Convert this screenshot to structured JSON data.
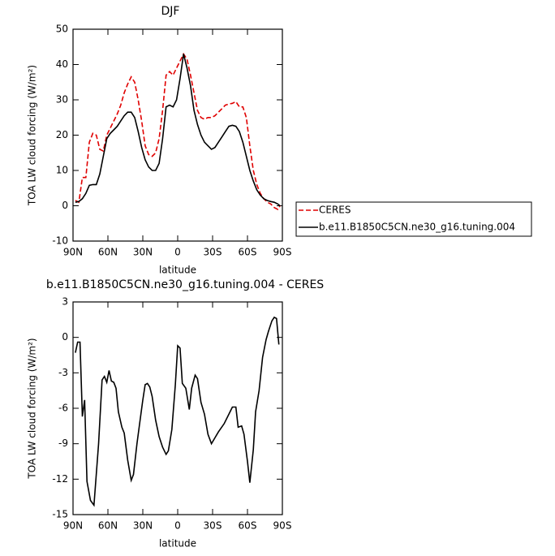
{
  "chart_data": [
    {
      "type": "line",
      "title": "DJF",
      "xlabel": "latitude",
      "ylabel": "TOA LW cloud forcing (W/m²)",
      "x": [
        88,
        85,
        82,
        79,
        76,
        73,
        70,
        67,
        64,
        61,
        58,
        55,
        52,
        49,
        46,
        43,
        40,
        37,
        34,
        31,
        28,
        25,
        22,
        19,
        16,
        13,
        10,
        7,
        4,
        1,
        -2,
        -5,
        -8,
        -11,
        -14,
        -17,
        -20,
        -23,
        -26,
        -29,
        -32,
        -35,
        -38,
        -41,
        -44,
        -47,
        -50,
        -53,
        -56,
        -59,
        -62,
        -65,
        -68,
        -71,
        -74,
        -77,
        -80,
        -83,
        -86,
        -88
      ],
      "series": [
        {
          "name": "CERES",
          "color": "#e00000",
          "dashed": true,
          "values": [
            1.5,
            1,
            8,
            8,
            18,
            20.5,
            20,
            16,
            15.5,
            20,
            22,
            24,
            26,
            28.5,
            32,
            34.5,
            36.5,
            35,
            30,
            24,
            17,
            14.5,
            14,
            15,
            19,
            27,
            37,
            38,
            37,
            39,
            41,
            43,
            41.5,
            37,
            32,
            27,
            25,
            24.5,
            25,
            25,
            25.5,
            26.5,
            27.5,
            28.5,
            28.8,
            29,
            29.5,
            28,
            28,
            25,
            17,
            10,
            6,
            3.5,
            2,
            1,
            0.5,
            -0.5,
            -1,
            0
          ]
        },
        {
          "name": "b.e11.B1850C5CN.ne30_g16.tuning.004",
          "color": "#000000",
          "dashed": false,
          "values": [
            1,
            1.2,
            2,
            3.5,
            5.8,
            6,
            6,
            9,
            14,
            19,
            20.5,
            21.5,
            22.5,
            24,
            25.5,
            26.5,
            26.5,
            25,
            21,
            16.5,
            13,
            11,
            10,
            10,
            12,
            19,
            28,
            28.5,
            28,
            30,
            36,
            43,
            39,
            34,
            27,
            23,
            20,
            18,
            17,
            16,
            16.5,
            18,
            19.5,
            21,
            22.5,
            22.8,
            22.5,
            21,
            18,
            14,
            10,
            7,
            4.5,
            3,
            2,
            1.5,
            1.2,
            1,
            0.5,
            0
          ]
        }
      ],
      "xlim": [
        90,
        -90
      ],
      "xticks": [
        {
          "value": 90,
          "label": "90N"
        },
        {
          "value": 60,
          "label": "60N"
        },
        {
          "value": 30,
          "label": "30N"
        },
        0,
        {
          "value": -30,
          "label": "30S"
        },
        {
          "value": -60,
          "label": "60S"
        },
        {
          "value": -90,
          "label": "90S"
        }
      ],
      "ylim": [
        -10,
        50
      ],
      "yticks": [
        -10,
        0,
        10,
        20,
        30,
        40,
        50
      ],
      "legend": "outside-right"
    },
    {
      "type": "line",
      "title": "b.e11.B1850C5CN.ne30_g16.tuning.004 - CERES",
      "xlabel": "latitude",
      "ylabel": "TOA LW cloud forcing (W/m²)",
      "x": [
        88,
        86,
        84,
        82,
        80,
        78,
        75,
        72,
        68,
        65,
        63,
        61,
        59,
        57,
        55,
        53,
        51,
        48,
        46,
        43,
        40,
        38,
        35,
        33,
        30,
        28,
        26,
        24,
        22,
        19,
        16,
        13,
        10,
        8,
        5,
        2,
        0,
        -2,
        -4,
        -7,
        -10,
        -12,
        -15,
        -17,
        -20,
        -23,
        -26,
        -29,
        -32,
        -35,
        -40,
        -45,
        -47,
        -50,
        -52,
        -55,
        -57,
        -60,
        -62,
        -65,
        -67,
        -70,
        -73,
        -76,
        -78,
        -81,
        -83,
        -85,
        -87
      ],
      "series": [
        {
          "color": "#000000",
          "dashed": false,
          "values": [
            -1.3,
            -0.4,
            -0.4,
            -6.7,
            -5.3,
            -12.2,
            -13.8,
            -14.2,
            -9,
            -3.6,
            -3.3,
            -3.8,
            -2.8,
            -3.7,
            -3.8,
            -4.3,
            -6.3,
            -7.6,
            -8.1,
            -10.4,
            -12.1,
            -11.6,
            -9,
            -7.5,
            -5.3,
            -4,
            -3.9,
            -4.2,
            -5,
            -7,
            -8.4,
            -9.3,
            -9.9,
            -9.6,
            -7.8,
            -4,
            -0.7,
            -0.9,
            -3.9,
            -4.3,
            -6.1,
            -4.3,
            -3.2,
            -3.5,
            -5.5,
            -6.5,
            -8.2,
            -9,
            -8.5,
            -8,
            -7.3,
            -6.3,
            -5.9,
            -5.9,
            -7.6,
            -7.5,
            -8.2,
            -10.5,
            -12.3,
            -9.5,
            -6.3,
            -4.5,
            -1.7,
            -0.2,
            0.5,
            1.4,
            1.7,
            1.6,
            -0.6
          ]
        }
      ],
      "xlim": [
        90,
        -90
      ],
      "xticks": [
        {
          "value": 90,
          "label": "90N"
        },
        {
          "value": 60,
          "label": "60N"
        },
        {
          "value": 30,
          "label": "30N"
        },
        0,
        {
          "value": -30,
          "label": "30S"
        },
        {
          "value": -60,
          "label": "60S"
        },
        {
          "value": -90,
          "label": "90S"
        }
      ],
      "ylim": [
        -15,
        3
      ],
      "yticks": [
        -15,
        -12,
        -9,
        -6,
        -3,
        0,
        3
      ]
    }
  ]
}
